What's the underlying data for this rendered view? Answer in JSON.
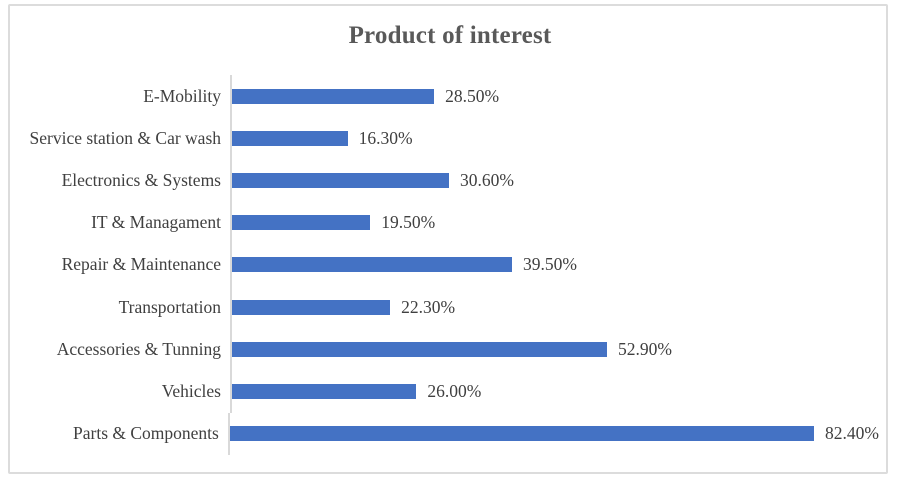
{
  "chart": {
    "title": "Product of interest",
    "colors": {
      "bar": "#4472c4",
      "axis_line": "#d9d9d9",
      "title_text": "#595959",
      "label_text": "#404040",
      "frame_border": "#dcdcdc"
    }
  },
  "chart_data": {
    "type": "bar",
    "orientation": "horizontal",
    "title": "Product of interest",
    "categories": [
      "E-Mobility",
      "Service station & Car wash",
      "Electronics & Systems",
      "IT & Managament",
      "Repair & Maintenance",
      "Transportation",
      "Accessories & Tunning",
      "Vehicles",
      "Parts & Components"
    ],
    "values": [
      28.5,
      16.3,
      30.6,
      19.5,
      39.5,
      22.3,
      52.9,
      26.0,
      82.4
    ],
    "value_labels": [
      "28.50%",
      "16.30%",
      "30.60%",
      "19.50%",
      "39.50%",
      "22.30%",
      "52.90%",
      "26.00%",
      "82.40%"
    ],
    "xlabel": "",
    "ylabel": "",
    "xlim": [
      0,
      90
    ],
    "grid": false,
    "legend": false,
    "data_labels": true
  }
}
